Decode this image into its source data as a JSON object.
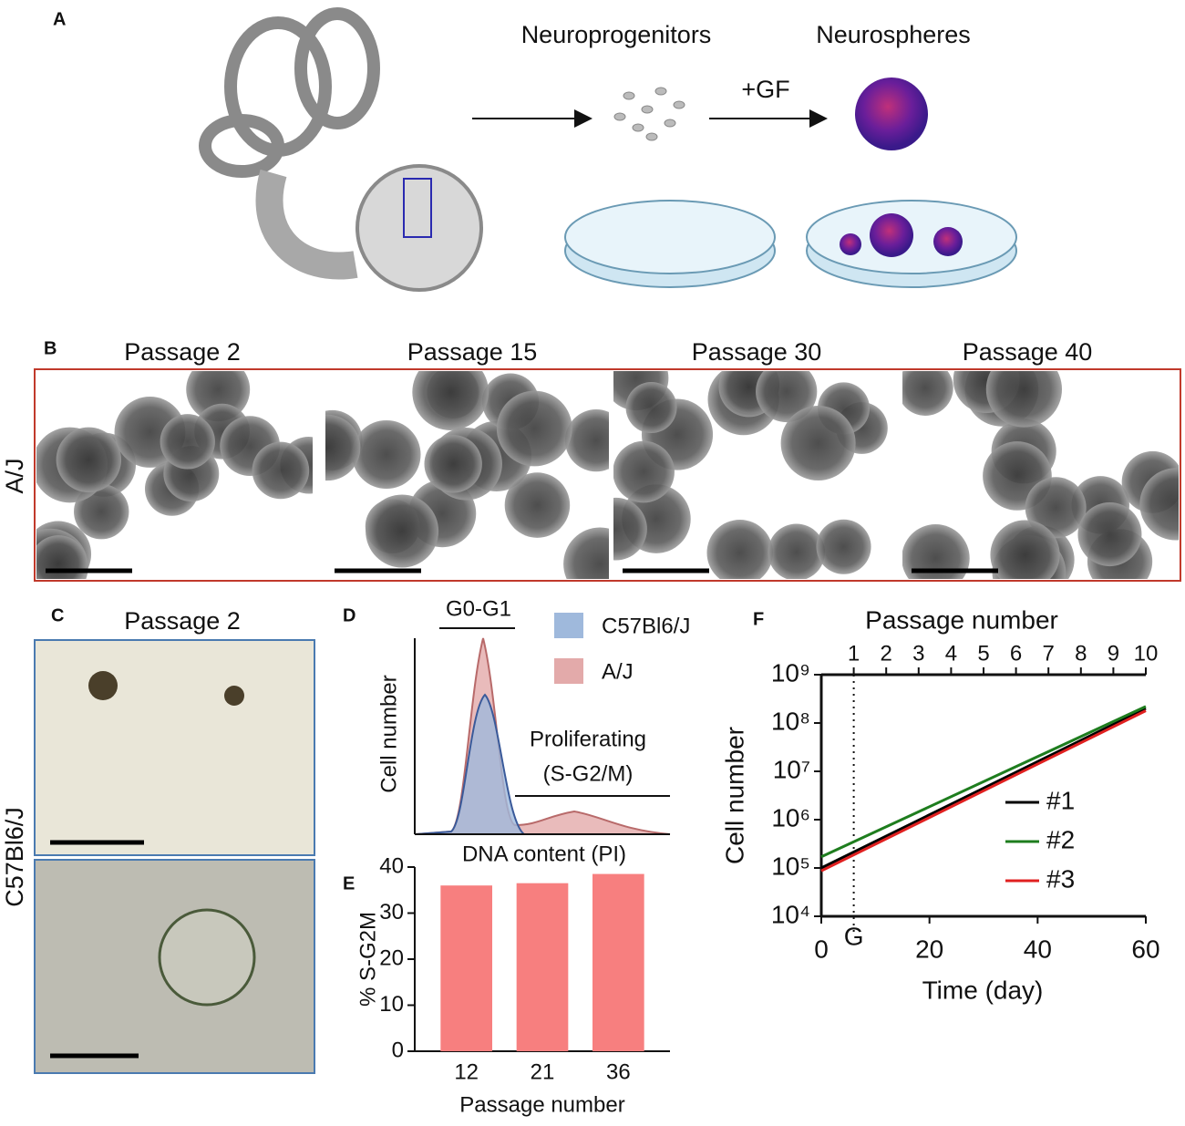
{
  "panel_a": {
    "label": "A",
    "neuroprogenitors": "Neuroprogenitors",
    "neurospheres": "Neurospheres",
    "growth_factor": "+GF"
  },
  "panel_b": {
    "label": "B",
    "row_label": "A/J",
    "columns": [
      "Passage 2",
      "Passage 15",
      "Passage 30",
      "Passage 40"
    ]
  },
  "panel_c": {
    "label": "C",
    "title": "Passage 2",
    "row_label": "C57Bl6/J"
  },
  "panel_d": {
    "label": "D",
    "gate": "G0-G1",
    "proliferating": [
      "Proliferating",
      "(S-G2/M)"
    ],
    "ylabel": "Cell number",
    "xlabel": "DNA content (PI)",
    "legend": [
      {
        "name": "C57Bl6/J",
        "color": "#9fb9dc"
      },
      {
        "name": "A/J",
        "color": "#e3aaaa"
      }
    ]
  },
  "chart_data": [
    {
      "type": "bar",
      "label": "E",
      "categories": [
        "12",
        "21",
        "36"
      ],
      "values": [
        36,
        36.5,
        38.5
      ],
      "color": "#f77f7f",
      "ylim": [
        0,
        40
      ],
      "yticks": [
        0,
        10,
        20,
        30,
        40
      ],
      "ylabel": "% S-G2M",
      "xlabel": "Passage number"
    },
    {
      "type": "line",
      "label": "F",
      "yscale": "log",
      "x": [
        0,
        60
      ],
      "series": [
        {
          "name": "#1",
          "color": "#000000",
          "values": [
            100000,
            200000000
          ]
        },
        {
          "name": "#2",
          "color": "#1e7d1e",
          "values": [
            170000,
            220000000
          ]
        },
        {
          "name": "#3",
          "color": "#e02020",
          "values": [
            87000,
            180000000
          ]
        }
      ],
      "xlim": [
        0,
        60
      ],
      "xticks": [
        0,
        20,
        40,
        60
      ],
      "xlabel": "Time (day)",
      "ylim": [
        10000,
        1000000000
      ],
      "yticks": [
        {
          "value": 10000,
          "label": "10⁴"
        },
        {
          "value": 100000,
          "label": "10⁵"
        },
        {
          "value": 1000000,
          "label": "10⁶"
        },
        {
          "value": 10000000,
          "label": "10⁷"
        },
        {
          "value": 100000000,
          "label": "10⁸"
        },
        {
          "value": 1000000000,
          "label": "10⁹"
        }
      ],
      "ylabel": "Cell number",
      "x2label": "Passage number",
      "x2ticks": [
        {
          "value": 6,
          "label": "1"
        },
        {
          "value": 12,
          "label": "2"
        },
        {
          "value": 18,
          "label": "3"
        },
        {
          "value": 24,
          "label": "4"
        },
        {
          "value": 30,
          "label": "5"
        },
        {
          "value": 36,
          "label": "6"
        },
        {
          "value": 42,
          "label": "7"
        },
        {
          "value": 48,
          "label": "8"
        },
        {
          "value": 54,
          "label": "9"
        },
        {
          "value": 60,
          "label": "10"
        }
      ],
      "vline": {
        "value": 6,
        "label": "G"
      }
    }
  ]
}
